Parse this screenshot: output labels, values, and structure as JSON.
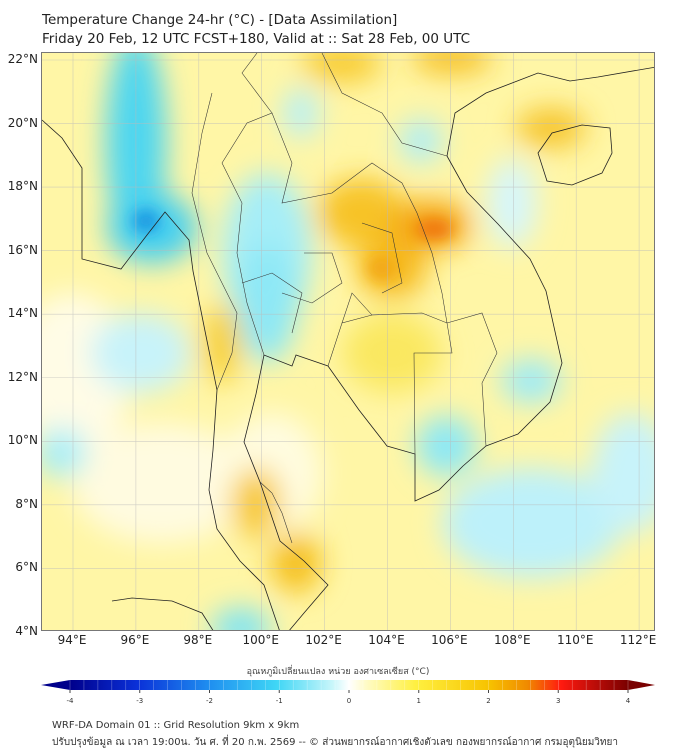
{
  "header": {
    "title": "Temperature Change 24-hr (°C) - [Data Assimilation]",
    "subtitle": "Friday 20 Feb, 12 UTC FCST+180, Valid at :: Sat 28 Feb, 00 UTC"
  },
  "map": {
    "lat_labels": [
      "22°N",
      "20°N",
      "18°N",
      "16°N",
      "14°N",
      "12°N",
      "10°N",
      "8°N",
      "6°N",
      "4°N"
    ],
    "lon_labels": [
      "94°E",
      "96°E",
      "98°E",
      "100°E",
      "102°E",
      "104°E",
      "106°E",
      "108°E",
      "110°E",
      "112°E"
    ],
    "lat_range": [
      4,
      22
    ],
    "lon_range": [
      94,
      112
    ]
  },
  "colorbar": {
    "label": "อุณหภูมิเปลี่ยนแปลง หน่วย องศาเซลเซียส (°C)",
    "ticks": [
      "-4",
      "-3",
      "-2",
      "-1",
      "0",
      "1",
      "2",
      "3",
      "4"
    ],
    "range": [
      -4,
      4
    ],
    "colors": [
      "#00008b",
      "#0a30d8",
      "#1f8ff0",
      "#3fd6f5",
      "#c8f6fa",
      "#ffffff",
      "#fffbc8",
      "#fff040",
      "#f7c300",
      "#f08a00",
      "#ff1a10",
      "#7a0000"
    ]
  },
  "footer": {
    "line1": "WRF-DA Domain 01 :: Grid Resolution 9km x 9km",
    "line2": "ปรับปรุงข้อมูล ณ เวลา 19:00น. วัน ศ. ที่ 20 ก.พ. 2569 -- © ส่วนพยากรณ์อากาศเชิงตัวเลข กองพยากรณ์อากาศ กรมอุตุนิยมวิทยา"
  }
}
